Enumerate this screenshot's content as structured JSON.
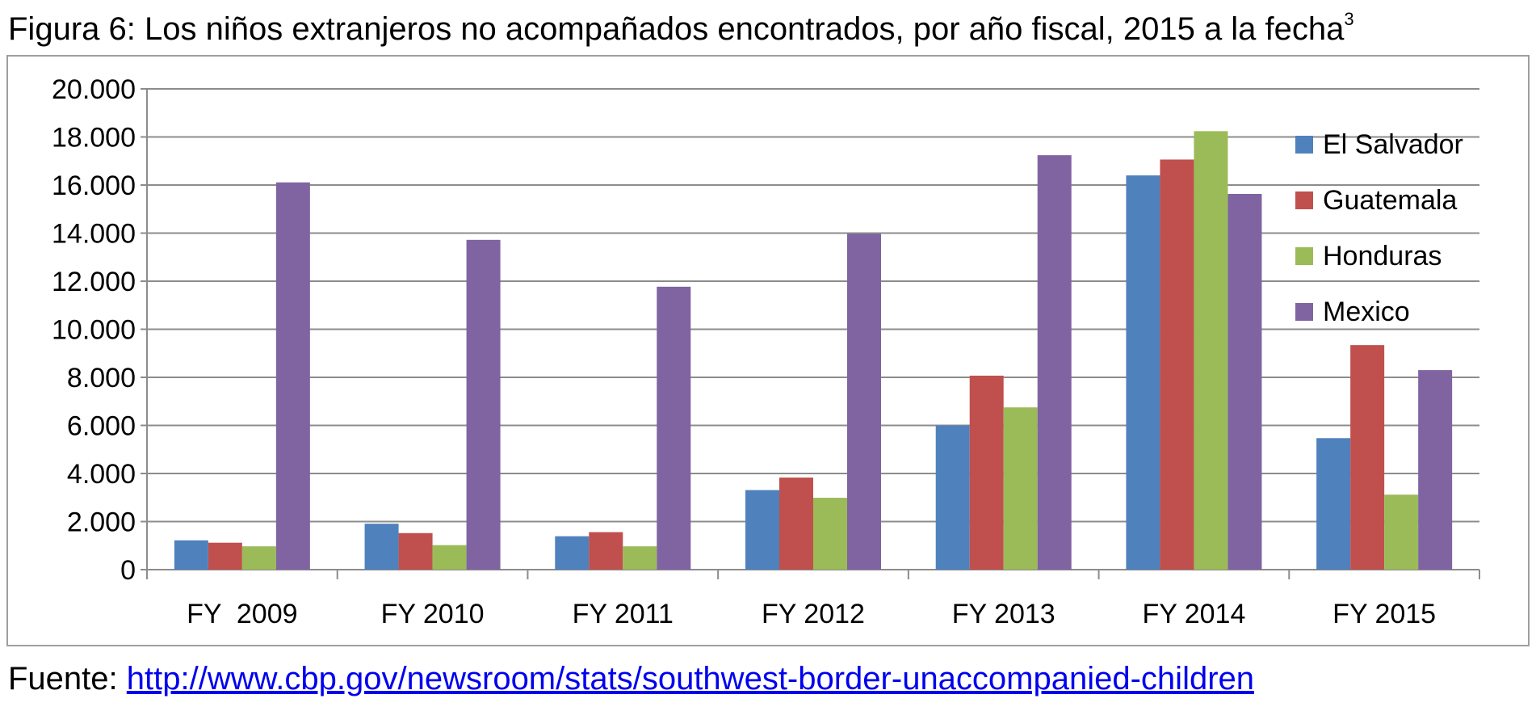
{
  "title": {
    "label": "Figura 6:",
    "text": "Los niños extranjeros no acompañados encontrados, por año fiscal, 2015 a la fecha",
    "footnote": "3"
  },
  "source": {
    "label": "Fuente:",
    "url": "http://www.cbp.gov/newsroom/stats/southwest-border-unaccompanied-children"
  },
  "chart_data": {
    "type": "bar",
    "title": "",
    "xlabel": "",
    "ylabel": "",
    "categories": [
      "FY  2009",
      "FY 2010",
      "FY 2011",
      "FY 2012",
      "FY 2013",
      "FY 2014",
      "FY 2015"
    ],
    "yticks": [
      "0",
      "2.000",
      "4.000",
      "6.000",
      "8.000",
      "10.000",
      "12.000",
      "14.000",
      "16.000",
      "18.000",
      "20.000"
    ],
    "ylim": [
      0,
      20000
    ],
    "grid": true,
    "legend_position": "top-right",
    "series": [
      {
        "name": "El Salvador",
        "color": "#4f81bd",
        "values": [
          1220,
          1910,
          1390,
          3310,
          6000,
          16400,
          5470
        ]
      },
      {
        "name": "Guatemala",
        "color": "#c0504d",
        "values": [
          1120,
          1520,
          1560,
          3830,
          8070,
          17060,
          9340
        ]
      },
      {
        "name": "Honduras",
        "color": "#9bbb59",
        "values": [
          970,
          1020,
          970,
          2990,
          6750,
          18240,
          3120
        ]
      },
      {
        "name": "Mexico",
        "color": "#8064a2",
        "values": [
          16110,
          13720,
          11770,
          13970,
          17240,
          15630,
          8300
        ]
      }
    ]
  }
}
